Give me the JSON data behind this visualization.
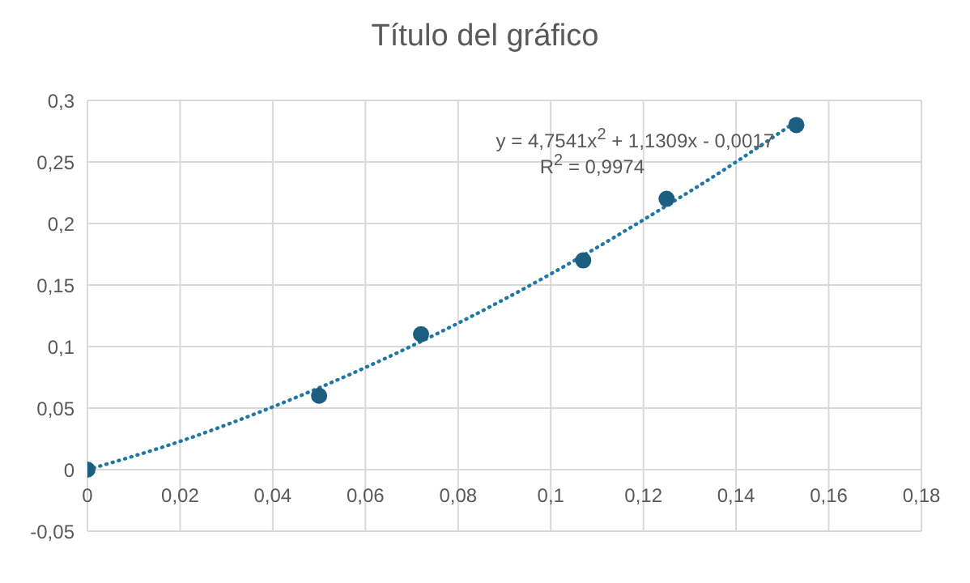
{
  "chart_data": {
    "type": "scatter",
    "title": "Título del gráfico",
    "x": [
      0,
      0.05,
      0.072,
      0.107,
      0.125,
      0.153
    ],
    "series": [
      {
        "color": "#1b5e80",
        "marker": "circle",
        "values": [
          0,
          0.06,
          0.11,
          0.17,
          0.22,
          0.28
        ]
      },
      {
        "type": "line",
        "color": "#1f77a4",
        "marker": "none",
        "line_style": "dotted",
        "x": [
          0,
          0.02,
          0.04,
          0.06,
          0.08,
          0.1,
          0.12,
          0.14,
          0.153
        ],
        "values": [
          0,
          0.023,
          0.051,
          0.083,
          0.119,
          0.159,
          0.203,
          0.25,
          0.283
        ]
      }
    ],
    "annotations": [
      "y = 4,7541x$^{2}$ + 1,1309x - 0,0017",
      "R$^{2}$ = 0,9974"
    ],
    "xlim": [
      0,
      0.18
    ],
    "xticks": [
      0,
      {
        "value": 0.02,
        "label": "0,02"
      },
      {
        "value": 0.04,
        "label": "0,04"
      },
      {
        "value": 0.06,
        "label": "0,06"
      },
      {
        "value": 0.08,
        "label": "0,08"
      },
      {
        "value": 0.1,
        "label": "0,1"
      },
      {
        "value": 0.12,
        "label": "0,12"
      },
      {
        "value": 0.14,
        "label": "0,14"
      },
      {
        "value": 0.16,
        "label": "0,16"
      },
      {
        "value": 0.18,
        "label": "0,18"
      }
    ],
    "ylim": [
      -0.05,
      0.3
    ],
    "yticks": [
      {
        "value": -0.05,
        "label": "-0,05"
      },
      0,
      {
        "value": 0.05,
        "label": "0,05"
      },
      {
        "value": 0.1,
        "label": "0,1"
      },
      {
        "value": 0.15,
        "label": "0,15"
      },
      {
        "value": 0.2,
        "label": "0,2"
      },
      {
        "value": 0.25,
        "label": "0,25"
      },
      {
        "value": 0.3,
        "label": "0,3"
      }
    ],
    "grid": true
  }
}
